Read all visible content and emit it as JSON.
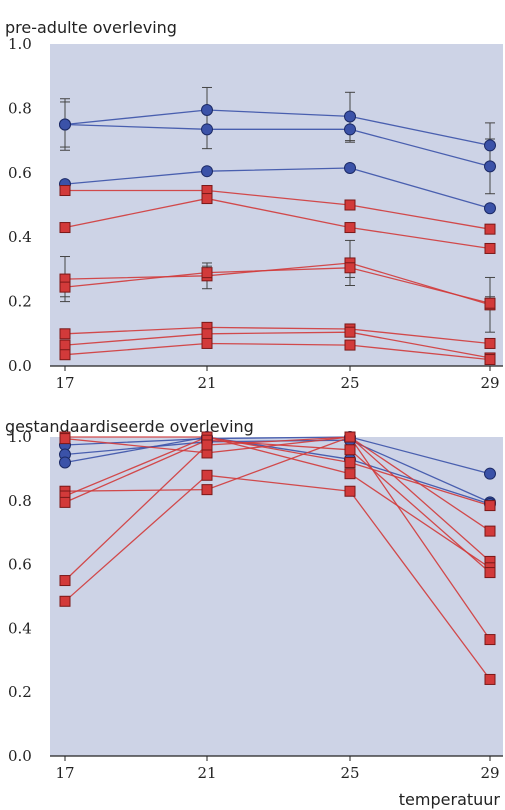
{
  "colors": {
    "plot_bg": "#cdd3e6",
    "blue": "#3b52a8",
    "red": "#d23a3a",
    "error_bar": "#444444"
  },
  "chart_data": [
    {
      "type": "line",
      "title": "pre-adulte overleving",
      "xlabel": "",
      "ylabel": "",
      "x": [
        17,
        21,
        25,
        29
      ],
      "xlim": [
        17,
        29
      ],
      "ylim": [
        0,
        1.0
      ],
      "y_ticks": [
        "0.0",
        "0.2",
        "0.4",
        "0.6",
        "0.8",
        "1.0"
      ],
      "x_ticks": [
        "17",
        "21",
        "25",
        "29"
      ],
      "grid": false,
      "series": [
        {
          "color": "blue",
          "marker": "circle",
          "values": [
            0.75,
            0.795,
            0.775,
            0.685
          ],
          "errors": [
            0.07,
            0.07,
            0.075,
            0.07
          ]
        },
        {
          "color": "blue",
          "marker": "circle",
          "values": [
            0.75,
            0.735,
            0.735,
            0.62
          ],
          "errors": [
            0.08,
            0.06,
            0.04,
            0.085
          ]
        },
        {
          "color": "blue",
          "marker": "circle",
          "values": [
            0.565,
            0.605,
            0.615,
            0.49
          ],
          "errors": [
            0,
            0,
            0,
            0
          ]
        },
        {
          "color": "red",
          "marker": "square",
          "values": [
            0.545,
            0.545,
            0.5,
            0.425
          ],
          "errors": [
            0,
            0,
            0,
            0
          ]
        },
        {
          "color": "red",
          "marker": "square",
          "values": [
            0.43,
            0.52,
            0.43,
            0.365
          ],
          "errors": [
            0,
            0,
            0,
            0
          ]
        },
        {
          "color": "red",
          "marker": "square",
          "values": [
            0.27,
            0.28,
            0.32,
            0.19
          ],
          "errors": [
            0.07,
            0.04,
            0.07,
            0.085
          ]
        },
        {
          "color": "red",
          "marker": "square",
          "values": [
            0.245,
            0.29,
            0.305,
            0.195
          ],
          "errors": [
            0.03,
            0.02,
            0.03,
            0.02
          ]
        },
        {
          "color": "red",
          "marker": "square",
          "values": [
            0.1,
            0.12,
            0.115,
            0.07
          ],
          "errors": [
            0,
            0,
            0,
            0
          ]
        },
        {
          "color": "red",
          "marker": "square",
          "values": [
            0.065,
            0.1,
            0.105,
            0.025
          ],
          "errors": [
            0,
            0,
            0,
            0
          ]
        },
        {
          "color": "red",
          "marker": "square",
          "values": [
            0.035,
            0.07,
            0.065,
            0.02
          ],
          "errors": [
            0,
            0,
            0,
            0
          ]
        }
      ]
    },
    {
      "type": "line",
      "title": "gestandaardiseerde overleving",
      "xlabel": "temperatuur",
      "ylabel": "",
      "x": [
        17,
        21,
        25,
        29
      ],
      "xlim": [
        17,
        29
      ],
      "ylim": [
        0,
        1.0
      ],
      "y_ticks": [
        "0.0",
        "0.2",
        "0.4",
        "0.6",
        "0.8",
        "1.0"
      ],
      "x_ticks": [
        "17",
        "21",
        "25",
        "29"
      ],
      "grid": false,
      "series": [
        {
          "color": "blue",
          "marker": "circle",
          "values": [
            0.975,
            0.995,
            1.0,
            0.885
          ]
        },
        {
          "color": "blue",
          "marker": "circle",
          "values": [
            0.945,
            0.985,
            0.99,
            0.795
          ]
        },
        {
          "color": "blue",
          "marker": "circle",
          "values": [
            0.92,
            1.0,
            0.93,
            0.79
          ]
        },
        {
          "color": "red",
          "marker": "square",
          "values": [
            1.0,
            1.0,
            0.92,
            0.785
          ]
        },
        {
          "color": "red",
          "marker": "square",
          "values": [
            0.995,
            0.95,
            1.0,
            0.705
          ]
        },
        {
          "color": "red",
          "marker": "square",
          "values": [
            0.83,
            0.835,
            1.0,
            0.61
          ]
        },
        {
          "color": "red",
          "marker": "square",
          "values": [
            0.815,
            1.0,
            0.885,
            0.59
          ]
        },
        {
          "color": "red",
          "marker": "square",
          "values": [
            0.795,
            0.99,
            0.96,
            0.575
          ]
        },
        {
          "color": "red",
          "marker": "square",
          "values": [
            0.55,
            0.975,
            1.0,
            0.365
          ]
        },
        {
          "color": "red",
          "marker": "square",
          "values": [
            0.485,
            0.88,
            0.83,
            0.24
          ]
        }
      ]
    }
  ]
}
